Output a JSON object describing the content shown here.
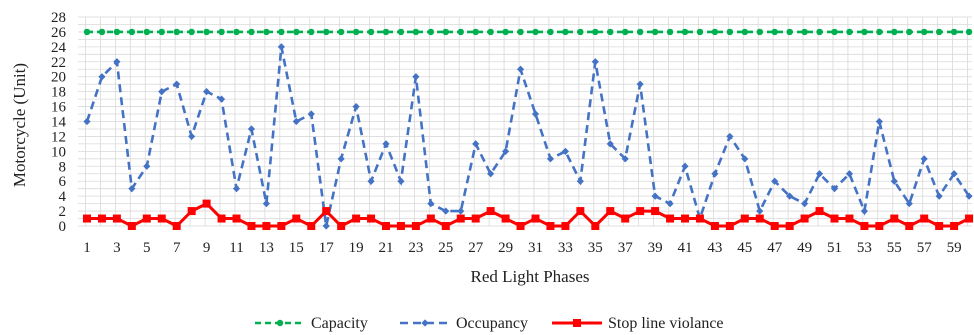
{
  "chart_data": {
    "type": "line",
    "xlabel": "Red Light Phases",
    "ylabel": "Motorcycle (Unit)",
    "x": [
      1,
      2,
      3,
      4,
      5,
      6,
      7,
      8,
      9,
      10,
      11,
      12,
      13,
      14,
      15,
      16,
      17,
      18,
      19,
      20,
      21,
      22,
      23,
      24,
      25,
      26,
      27,
      28,
      29,
      30,
      31,
      32,
      33,
      34,
      35,
      36,
      37,
      38,
      39,
      40,
      41,
      42,
      43,
      44,
      45,
      46,
      47,
      48,
      49,
      50,
      51,
      52,
      53,
      54,
      55,
      56,
      57,
      58,
      59,
      60
    ],
    "x_tick_labels": [
      "1",
      "3",
      "5",
      "7",
      "9",
      "11",
      "13",
      "15",
      "17",
      "19",
      "21",
      "23",
      "25",
      "27",
      "29",
      "31",
      "33",
      "35",
      "37",
      "39",
      "41",
      "43",
      "45",
      "47",
      "49",
      "51",
      "53",
      "55",
      "57",
      "59"
    ],
    "y_tick_labels": [
      "0",
      "2",
      "4",
      "6",
      "8",
      "10",
      "12",
      "14",
      "16",
      "18",
      "20",
      "22",
      "24",
      "26",
      "28"
    ],
    "ylim": [
      0,
      28
    ],
    "grid": true,
    "legend_position": "bottom",
    "series": [
      {
        "name": "Capacity",
        "color": "#00b050",
        "style": "dashed-circle",
        "values": [
          26,
          26,
          26,
          26,
          26,
          26,
          26,
          26,
          26,
          26,
          26,
          26,
          26,
          26,
          26,
          26,
          26,
          26,
          26,
          26,
          26,
          26,
          26,
          26,
          26,
          26,
          26,
          26,
          26,
          26,
          26,
          26,
          26,
          26,
          26,
          26,
          26,
          26,
          26,
          26,
          26,
          26,
          26,
          26,
          26,
          26,
          26,
          26,
          26,
          26,
          26,
          26,
          26,
          26,
          26,
          26,
          26,
          26,
          26,
          26
        ]
      },
      {
        "name": "Occupancy",
        "color": "#4472c4",
        "style": "dashed-diamond",
        "values": [
          14,
          20,
          22,
          5,
          8,
          18,
          19,
          12,
          18,
          17,
          5,
          13,
          3,
          24,
          14,
          15,
          0,
          9,
          16,
          6,
          11,
          6,
          20,
          3,
          2,
          2,
          11,
          7,
          10,
          21,
          15,
          9,
          10,
          6,
          22,
          11,
          9,
          19,
          4,
          3,
          8,
          1,
          7,
          12,
          9,
          2,
          6,
          4,
          3,
          7,
          5,
          7,
          2,
          14,
          6,
          3,
          9,
          4,
          7,
          4
        ]
      },
      {
        "name": "Stop line violance",
        "color": "#ff0000",
        "style": "solid-square",
        "values": [
          1,
          1,
          1,
          0,
          1,
          1,
          0,
          2,
          3,
          1,
          1,
          0,
          0,
          0,
          1,
          0,
          2,
          0,
          1,
          1,
          0,
          0,
          0,
          1,
          0,
          1,
          1,
          2,
          1,
          0,
          1,
          0,
          0,
          2,
          0,
          2,
          1,
          2,
          2,
          1,
          1,
          1,
          0,
          0,
          1,
          1,
          0,
          0,
          1,
          2,
          1,
          1,
          0,
          0,
          1,
          0,
          1,
          0,
          0,
          1
        ]
      }
    ]
  }
}
